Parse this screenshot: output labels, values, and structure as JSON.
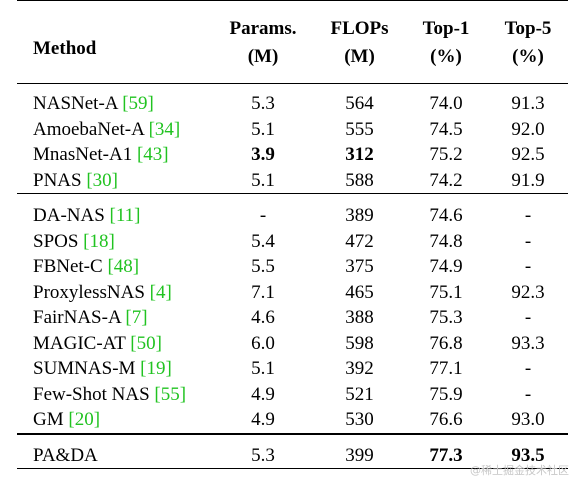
{
  "table": {
    "headers": {
      "method": "Method",
      "params": [
        "Params.",
        "(M)"
      ],
      "flops": [
        "FLOPs",
        "(M)"
      ],
      "top1": [
        "Top-1",
        "(%)"
      ],
      "top5": [
        "Top-5",
        "(%)"
      ]
    },
    "groups": [
      [
        {
          "name": "NASNet-A",
          "cite": "59",
          "params": "5.3",
          "flops": "564",
          "top1": "74.0",
          "top5": "91.3"
        },
        {
          "name": "AmoebaNet-A",
          "cite": "34",
          "params": "5.1",
          "flops": "555",
          "top1": "74.5",
          "top5": "92.0"
        },
        {
          "name": "MnasNet-A1",
          "cite": "43",
          "params": "3.9",
          "flops": "312",
          "top1": "75.2",
          "top5": "92.5",
          "bold": [
            "params",
            "flops"
          ]
        },
        {
          "name": "PNAS",
          "cite": "30",
          "params": "5.1",
          "flops": "588",
          "top1": "74.2",
          "top5": "91.9"
        }
      ],
      [
        {
          "name": "DA-NAS",
          "cite": "11",
          "params": "-",
          "flops": "389",
          "top1": "74.6",
          "top5": "-"
        },
        {
          "name": "SPOS",
          "cite": "18",
          "params": "5.4",
          "flops": "472",
          "top1": "74.8",
          "top5": "-"
        },
        {
          "name": "FBNet-C",
          "cite": "48",
          "params": "5.5",
          "flops": "375",
          "top1": "74.9",
          "top5": "-"
        },
        {
          "name": "ProxylessNAS",
          "cite": "4",
          "params": "7.1",
          "flops": "465",
          "top1": "75.1",
          "top5": "92.3"
        },
        {
          "name": "FairNAS-A",
          "cite": "7",
          "params": "4.6",
          "flops": "388",
          "top1": "75.3",
          "top5": "-"
        },
        {
          "name": "MAGIC-AT",
          "cite": "50",
          "params": "6.0",
          "flops": "598",
          "top1": "76.8",
          "top5": "93.3"
        },
        {
          "name": "SUMNAS-M",
          "cite": "19",
          "params": "5.1",
          "flops": "392",
          "top1": "77.1",
          "top5": "-"
        },
        {
          "name": "Few-Shot NAS",
          "cite": "55",
          "params": "4.9",
          "flops": "521",
          "top1": "75.9",
          "top5": "-"
        },
        {
          "name": "GM",
          "cite": "20",
          "params": "4.9",
          "flops": "530",
          "top1": "76.6",
          "top5": "93.0"
        }
      ],
      [
        {
          "name": "PA&DA",
          "cite": "",
          "params": "5.3",
          "flops": "399",
          "top1": "77.3",
          "top5": "93.5",
          "bold": [
            "top1",
            "top5"
          ]
        }
      ]
    ]
  },
  "watermark": "@稀土掘金技术社区",
  "colors": {
    "citation": "#21c321",
    "rule": "#000000"
  }
}
